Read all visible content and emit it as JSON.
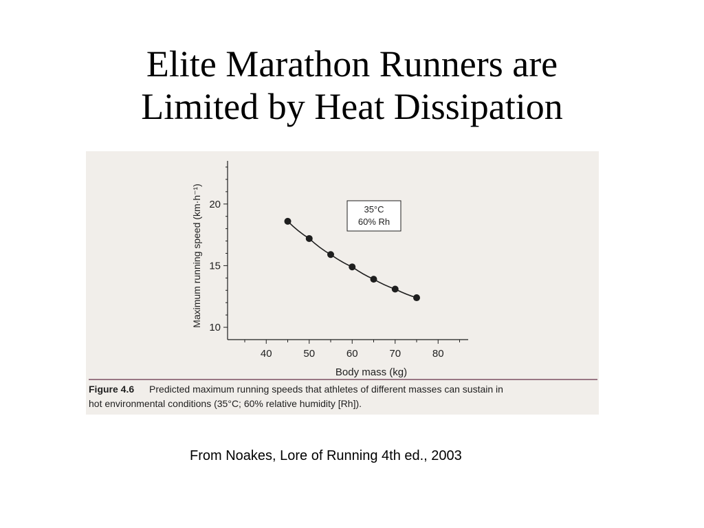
{
  "slide": {
    "title_line1": "Elite Marathon Runners are",
    "title_line2": "Limited by Heat Dissipation",
    "credit": "From Noakes, Lore of Running 4th ed., 2003"
  },
  "figure": {
    "caption_label": "Figure 4.6",
    "caption_line1": "Predicted maximum running speeds that athletes of different masses can sustain in",
    "caption_line2": "hot environmental conditions (35°C; 60% relative humidity [Rh]).",
    "paper_color": "#f1eeea",
    "ink_color": "#1e1e1e",
    "caption_rule_color": "#7c4f63"
  },
  "chart_data": {
    "type": "line",
    "xlabel": "Body mass (kg)",
    "ylabel": "Maximum running speed (km·h⁻¹)",
    "xlim": [
      31,
      87
    ],
    "ylim": [
      9,
      23.5
    ],
    "xticks": [
      40,
      50,
      60,
      70,
      80
    ],
    "yticks": [
      10,
      15,
      20
    ],
    "annotation": [
      "35°C",
      "60% Rh"
    ],
    "grid": false,
    "series": [
      {
        "x": [
          45,
          50,
          55,
          60,
          65,
          70,
          75
        ],
        "y": [
          18.6,
          17.2,
          15.9,
          14.9,
          13.9,
          13.1,
          12.4
        ]
      }
    ]
  }
}
